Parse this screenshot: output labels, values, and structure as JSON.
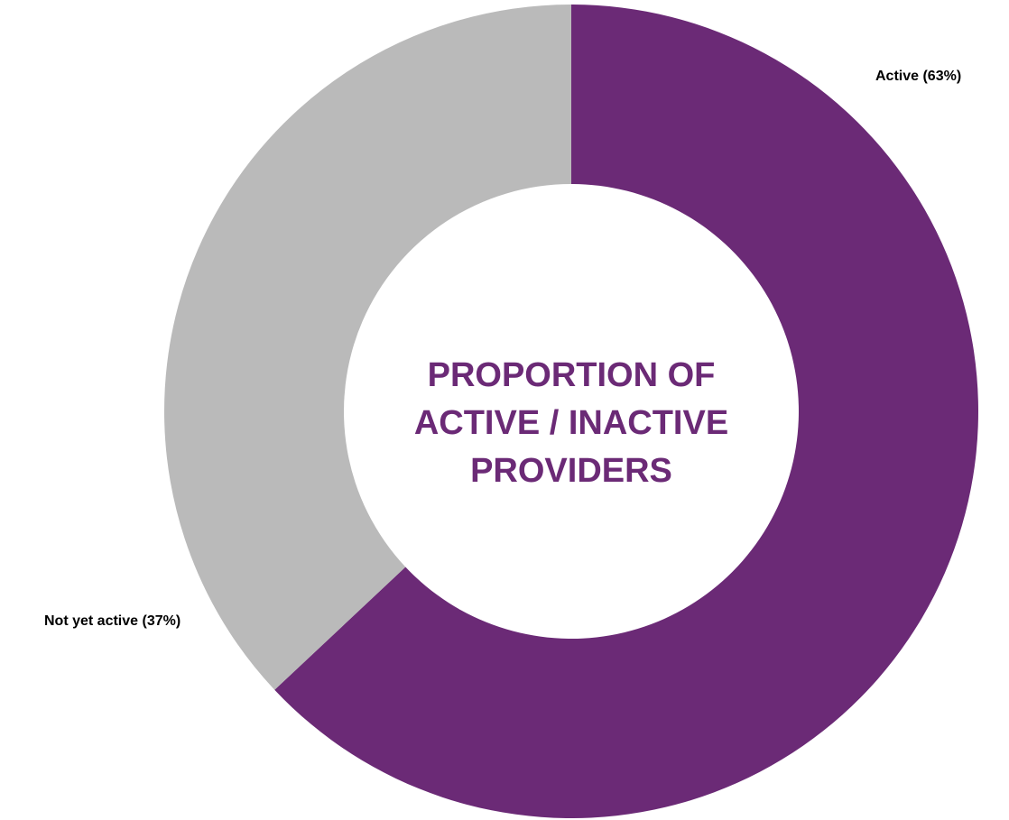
{
  "chart_data": {
    "type": "pie",
    "variant": "donut",
    "title_lines": [
      "PROPORTION OF",
      "ACTIVE / INACTIVE",
      "PROVIDERS"
    ],
    "slices": [
      {
        "label": "Active (63%)",
        "value": 63,
        "color": "#6b2a76"
      },
      {
        "label": "Not yet active (37%)",
        "value": 37,
        "color": "#bababa"
      }
    ],
    "start": "12 o'clock",
    "direction": "clockwise",
    "legend": "none",
    "title_color": "#6b2a76"
  }
}
